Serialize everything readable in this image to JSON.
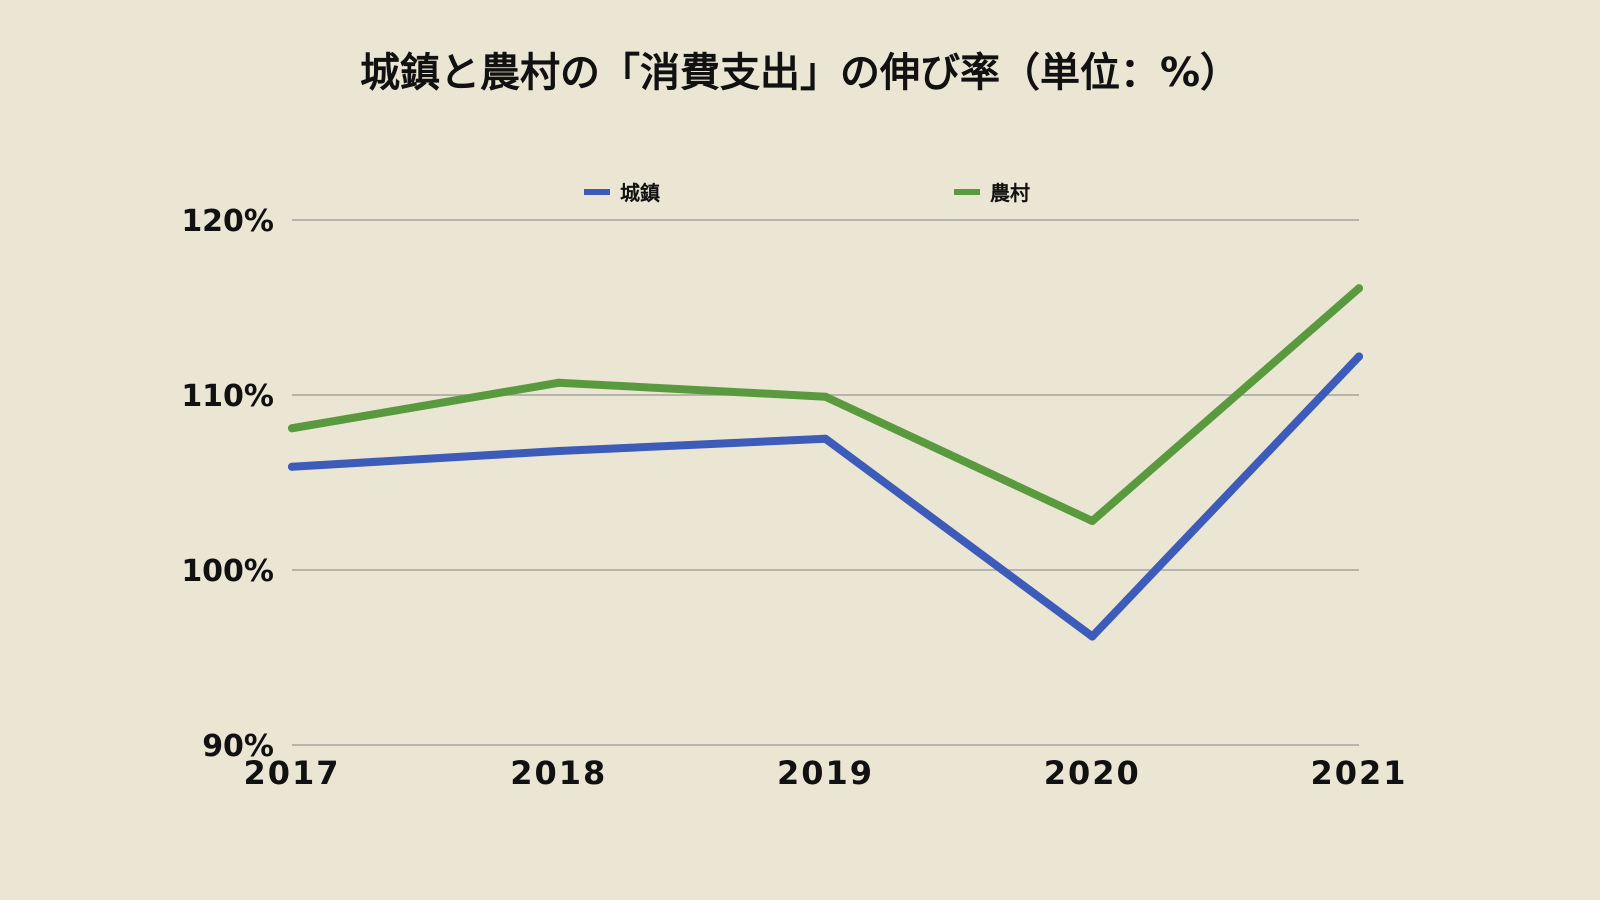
{
  "chart_data": {
    "type": "line",
    "title": "城鎮と農村の「消費支出」の伸び率（単位：%）",
    "categories": [
      "2017",
      "2018",
      "2019",
      "2020",
      "2021"
    ],
    "series": [
      {
        "name": "城鎮",
        "values": [
          105.9,
          106.8,
          107.5,
          96.2,
          112.2
        ],
        "color": "#3d5bb8"
      },
      {
        "name": "農村",
        "values": [
          108.1,
          110.7,
          109.9,
          102.8,
          116.1
        ],
        "color": "#5a9a3f"
      }
    ],
    "yticks": [
      90,
      100,
      110,
      120
    ],
    "ytick_labels": [
      "90%",
      "100%",
      "110%",
      "120%"
    ],
    "ylim": [
      90,
      120
    ],
    "grid": true,
    "legend_position": "top-center",
    "background": "#ebe5d3"
  }
}
